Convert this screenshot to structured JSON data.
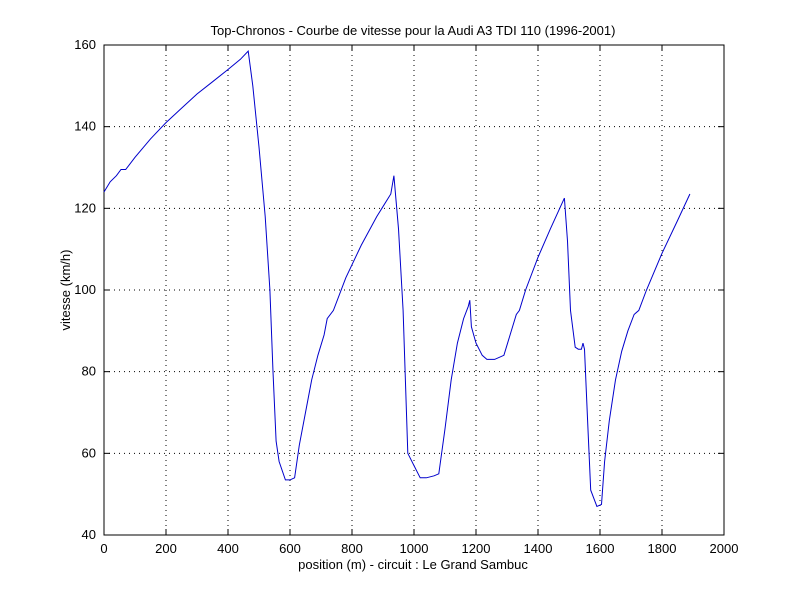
{
  "chart_data": {
    "type": "line",
    "title": "Top-Chronos - Courbe de vitesse pour la Audi A3 TDI 110 (1996-2001)",
    "xlabel": "position (m) - circuit : Le Grand Sambuc",
    "ylabel": "vitesse (km/h)",
    "xlim": [
      0,
      2000
    ],
    "ylim": [
      40,
      160
    ],
    "xticks": [
      0,
      200,
      400,
      600,
      800,
      1000,
      1200,
      1400,
      1600,
      1800,
      2000
    ],
    "yticks": [
      40,
      60,
      80,
      100,
      120,
      140,
      160
    ],
    "grid": true,
    "legend": "none",
    "line_color": "#0000cc",
    "series": [
      {
        "x": [
          0,
          20,
          40,
          55,
          70,
          100,
          150,
          200,
          250,
          300,
          350,
          400,
          440,
          465,
          480,
          500,
          520,
          535,
          545,
          555,
          565,
          585,
          600,
          615,
          630,
          650,
          670,
          690,
          710,
          720,
          740,
          780,
          830,
          880,
          925,
          935,
          950,
          965,
          980,
          1000,
          1020,
          1040,
          1065,
          1080,
          1100,
          1120,
          1140,
          1160,
          1175,
          1180,
          1185,
          1200,
          1220,
          1235,
          1260,
          1290,
          1310,
          1330,
          1340,
          1360,
          1400,
          1440,
          1485,
          1495,
          1505,
          1520,
          1530,
          1540,
          1545,
          1550,
          1560,
          1570,
          1590,
          1605,
          1615,
          1630,
          1650,
          1670,
          1690,
          1710,
          1725,
          1750,
          1800,
          1850,
          1890
        ],
        "y": [
          124,
          126.5,
          128,
          129.5,
          129.5,
          132.5,
          137,
          141,
          144.5,
          148,
          151,
          154,
          156.5,
          158.5,
          150,
          135,
          118,
          100,
          80,
          63,
          58,
          53.5,
          53.5,
          54,
          62,
          70,
          78,
          84,
          89,
          93,
          95,
          103,
          111,
          118,
          123.5,
          128,
          115,
          95,
          60,
          57,
          54,
          54,
          54.5,
          55,
          66,
          78,
          87,
          93,
          96,
          97.5,
          91,
          87,
          84,
          83,
          83,
          84,
          89,
          94,
          95,
          100,
          108,
          115,
          122.5,
          112,
          95,
          86,
          85.5,
          85.5,
          87,
          85.5,
          68,
          51,
          47,
          47.5,
          58,
          68,
          78,
          85,
          90,
          94,
          95,
          100,
          109,
          117,
          123.5
        ]
      }
    ]
  }
}
